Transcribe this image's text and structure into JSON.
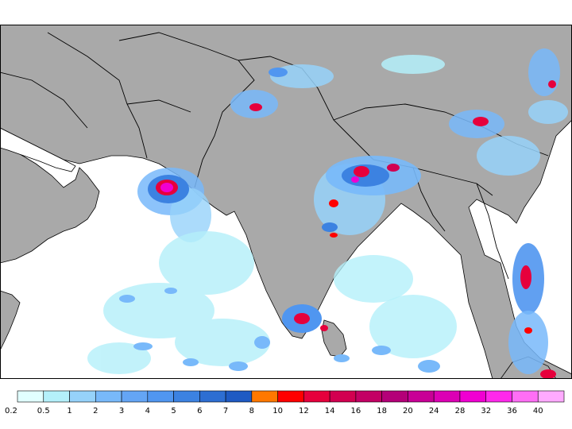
{
  "map": {
    "colors": {
      "ocean": "#ffffff",
      "land": "#a9a9a9",
      "borders": "#000000"
    }
  },
  "legend": {
    "labels": [
      "0.2",
      "0.5",
      "1",
      "2",
      "3",
      "4",
      "5",
      "6",
      "7",
      "8",
      "10",
      "12",
      "14",
      "16",
      "18",
      "20",
      "24",
      "28",
      "32",
      "36",
      "40"
    ],
    "colors": [
      "#e1ffff",
      "#b4f0fa",
      "#96d2fa",
      "#78b9fa",
      "#64a5f5",
      "#5096f0",
      "#3c82e1",
      "#2d6ed2",
      "#1e5ac3",
      "#ff7800",
      "#ff0000",
      "#e6003c",
      "#d20050",
      "#c30064",
      "#b40078",
      "#c80096",
      "#dc00b4",
      "#f000d2",
      "#ff28eb",
      "#ff6ef5",
      "#ffaaff"
    ]
  }
}
